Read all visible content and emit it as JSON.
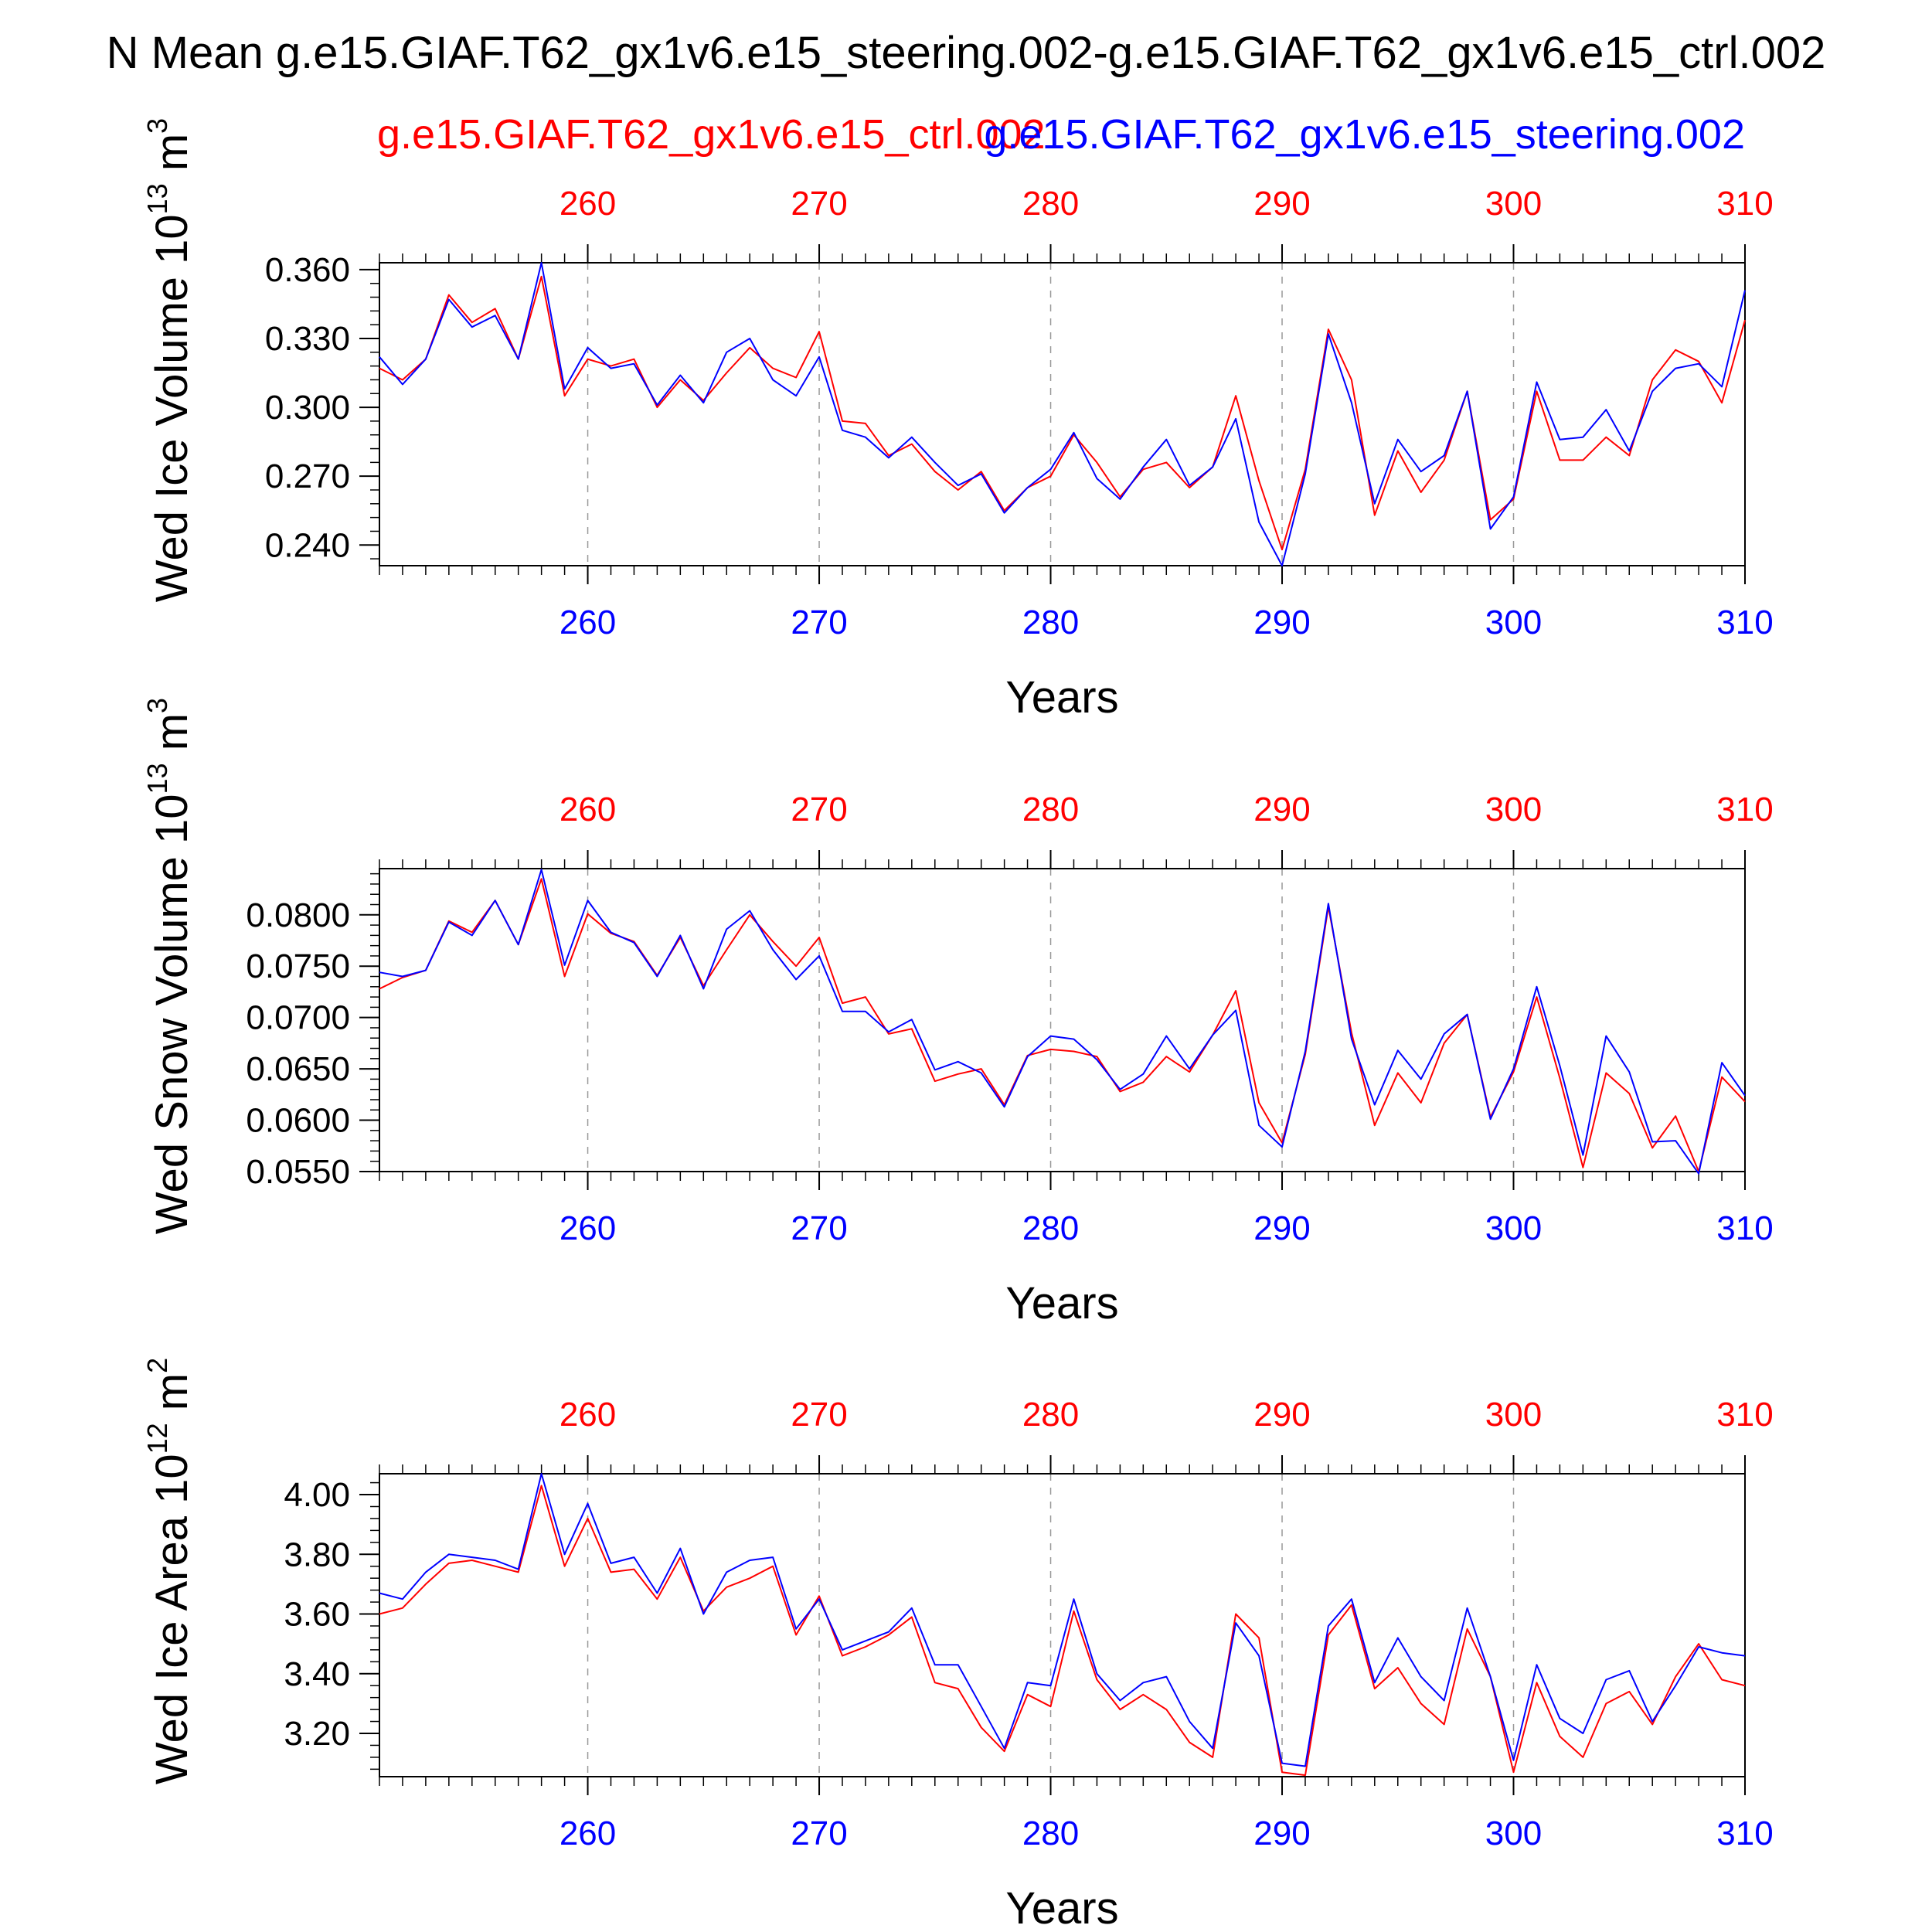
{
  "figure": {
    "title": "N Mean g.e15.GIAF.T62_gx1v6.e15_steering.002-g.e15.GIAF.T62_gx1v6.e15_ctrl.002",
    "ctrl_label": "g.e15.GIAF.T62_gx1v6.e15_ctrl.002",
    "steering_label": "g.e15.GIAF.T62_gx1v6.e15_steering.002",
    "colors": {
      "ctrl": "#ff0000",
      "steering": "#0000ff",
      "axis": "#000000",
      "grid": "#999999"
    }
  },
  "chart_data": [
    {
      "type": "line",
      "ylabel_main": "Wed Ice Volume 10",
      "ylabel_exp": "13",
      "ylabel_unit": "m",
      "ylabel_unit_exp": "3",
      "xlabel": "Years",
      "xlim": [
        251,
        310
      ],
      "ylim": [
        0.231,
        0.363
      ],
      "ytick_values": [
        0.24,
        0.27,
        0.3,
        0.33,
        0.36
      ],
      "ytick_labels": [
        "0.240",
        "0.270",
        "0.300",
        "0.330",
        "0.360"
      ],
      "xtick_values": [
        260,
        270,
        280,
        290,
        300,
        310
      ],
      "xtick_labels": [
        "260",
        "270",
        "280",
        "290",
        "300",
        "310"
      ],
      "grid": "x-dashed",
      "x": [
        251,
        252,
        253,
        254,
        255,
        256,
        257,
        258,
        259,
        260,
        261,
        262,
        263,
        264,
        265,
        266,
        267,
        268,
        269,
        270,
        271,
        272,
        273,
        274,
        275,
        276,
        277,
        278,
        279,
        280,
        281,
        282,
        283,
        284,
        285,
        286,
        287,
        288,
        289,
        290,
        291,
        292,
        293,
        294,
        295,
        296,
        297,
        298,
        299,
        300,
        301,
        302,
        303,
        304,
        305,
        306,
        307,
        308,
        309,
        310
      ],
      "series": [
        {
          "name": "g.e15.GIAF.T62_gx1v6.e15_ctrl.002",
          "color": "#ff0000",
          "values": [
            0.317,
            0.312,
            0.321,
            0.349,
            0.337,
            0.343,
            0.321,
            0.357,
            0.305,
            0.321,
            0.318,
            0.321,
            0.3,
            0.312,
            0.303,
            0.315,
            0.326,
            0.317,
            0.313,
            0.333,
            0.294,
            0.293,
            0.279,
            0.284,
            0.272,
            0.264,
            0.272,
            0.255,
            0.265,
            0.27,
            0.288,
            0.276,
            0.261,
            0.273,
            0.276,
            0.265,
            0.274,
            0.305,
            0.268,
            0.238,
            0.273,
            0.334,
            0.312,
            0.253,
            0.281,
            0.263,
            0.277,
            0.307,
            0.251,
            0.26,
            0.307,
            0.277,
            0.277,
            0.287,
            0.279,
            0.312,
            0.325,
            0.32,
            0.302,
            0.338
          ]
        },
        {
          "name": "g.e15.GIAF.T62_gx1v6.e15_steering.002",
          "color": "#0000ff",
          "values": [
            0.322,
            0.31,
            0.321,
            0.347,
            0.335,
            0.34,
            0.321,
            0.363,
            0.308,
            0.326,
            0.317,
            0.319,
            0.301,
            0.314,
            0.302,
            0.324,
            0.33,
            0.312,
            0.305,
            0.322,
            0.29,
            0.287,
            0.278,
            0.287,
            0.276,
            0.266,
            0.271,
            0.254,
            0.265,
            0.273,
            0.289,
            0.269,
            0.26,
            0.274,
            0.286,
            0.266,
            0.274,
            0.295,
            0.25,
            0.231,
            0.271,
            0.332,
            0.302,
            0.258,
            0.286,
            0.272,
            0.279,
            0.307,
            0.247,
            0.261,
            0.311,
            0.286,
            0.287,
            0.299,
            0.281,
            0.307,
            0.317,
            0.319,
            0.309,
            0.351
          ]
        }
      ]
    },
    {
      "type": "line",
      "ylabel_main": "Wed Snow Volume 10",
      "ylabel_exp": "13",
      "ylabel_unit": "m",
      "ylabel_unit_exp": "3",
      "xlabel": "Years",
      "xlim": [
        251,
        310
      ],
      "ylim": [
        0.055,
        0.0845
      ],
      "ytick_values": [
        0.055,
        0.06,
        0.065,
        0.07,
        0.075,
        0.08
      ],
      "ytick_labels": [
        "0.0550",
        "0.0600",
        "0.0650",
        "0.0700",
        "0.0750",
        "0.0800"
      ],
      "xtick_values": [
        260,
        270,
        280,
        290,
        300,
        310
      ],
      "xtick_labels": [
        "260",
        "270",
        "280",
        "290",
        "300",
        "310"
      ],
      "grid": "x-dashed",
      "x": [
        251,
        252,
        253,
        254,
        255,
        256,
        257,
        258,
        259,
        260,
        261,
        262,
        263,
        264,
        265,
        266,
        267,
        268,
        269,
        270,
        271,
        272,
        273,
        274,
        275,
        276,
        277,
        278,
        279,
        280,
        281,
        282,
        283,
        284,
        285,
        286,
        287,
        288,
        289,
        290,
        291,
        292,
        293,
        294,
        295,
        296,
        297,
        298,
        299,
        300,
        301,
        302,
        303,
        304,
        305,
        306,
        307,
        308,
        309,
        310
      ],
      "series": [
        {
          "name": "g.e15.GIAF.T62_gx1v6.e15_ctrl.002",
          "color": "#ff0000",
          "values": [
            0.0728,
            0.0739,
            0.0746,
            0.0794,
            0.0783,
            0.0814,
            0.0771,
            0.0835,
            0.074,
            0.0801,
            0.0782,
            0.0774,
            0.0741,
            0.0778,
            0.0731,
            0.0766,
            0.08,
            0.0774,
            0.075,
            0.0778,
            0.0714,
            0.072,
            0.0684,
            0.0689,
            0.0638,
            0.0645,
            0.065,
            0.0615,
            0.0663,
            0.0669,
            0.0667,
            0.0662,
            0.0628,
            0.0637,
            0.0662,
            0.0647,
            0.0683,
            0.0726,
            0.0617,
            0.0578,
            0.0664,
            0.0808,
            0.0685,
            0.0595,
            0.0646,
            0.0617,
            0.0675,
            0.0703,
            0.0603,
            0.0647,
            0.072,
            0.0641,
            0.0554,
            0.0646,
            0.0626,
            0.0573,
            0.0604,
            0.055,
            0.0642,
            0.0618
          ]
        },
        {
          "name": "g.e15.GIAF.T62_gx1v6.e15_steering.002",
          "color": "#0000ff",
          "values": [
            0.0744,
            0.074,
            0.0746,
            0.0793,
            0.078,
            0.0814,
            0.0771,
            0.0844,
            0.0751,
            0.0814,
            0.0783,
            0.0773,
            0.074,
            0.078,
            0.0728,
            0.0786,
            0.0804,
            0.0766,
            0.0737,
            0.076,
            0.0706,
            0.0706,
            0.0686,
            0.0698,
            0.0649,
            0.0657,
            0.0646,
            0.0613,
            0.0662,
            0.0682,
            0.0679,
            0.0659,
            0.063,
            0.0645,
            0.0682,
            0.065,
            0.0683,
            0.0707,
            0.0595,
            0.0574,
            0.0667,
            0.0811,
            0.0679,
            0.0615,
            0.0668,
            0.064,
            0.0684,
            0.0703,
            0.0601,
            0.065,
            0.073,
            0.0653,
            0.0566,
            0.0682,
            0.0647,
            0.0579,
            0.058,
            0.0548,
            0.0656,
            0.0624
          ]
        }
      ]
    },
    {
      "type": "line",
      "ylabel_main": "Wed Ice Area 10",
      "ylabel_exp": "12",
      "ylabel_unit": "m",
      "ylabel_unit_exp": "2",
      "xlabel": "Years",
      "xlim": [
        251,
        310
      ],
      "ylim": [
        3.055,
        4.07
      ],
      "ytick_values": [
        3.2,
        3.4,
        3.6,
        3.8,
        4.0
      ],
      "ytick_labels": [
        "3.20",
        "3.40",
        "3.60",
        "3.80",
        "4.00"
      ],
      "xtick_values": [
        260,
        270,
        280,
        290,
        300,
        310
      ],
      "xtick_labels": [
        "260",
        "270",
        "280",
        "290",
        "300",
        "310"
      ],
      "grid": "x-dashed",
      "x": [
        251,
        252,
        253,
        254,
        255,
        256,
        257,
        258,
        259,
        260,
        261,
        262,
        263,
        264,
        265,
        266,
        267,
        268,
        269,
        270,
        271,
        272,
        273,
        274,
        275,
        276,
        277,
        278,
        279,
        280,
        281,
        282,
        283,
        284,
        285,
        286,
        287,
        288,
        289,
        290,
        291,
        292,
        293,
        294,
        295,
        296,
        297,
        298,
        299,
        300,
        301,
        302,
        303,
        304,
        305,
        306,
        307,
        308,
        309,
        310
      ],
      "series": [
        {
          "name": "g.e15.GIAF.T62_gx1v6.e15_ctrl.002",
          "color": "#ff0000",
          "values": [
            3.6,
            3.62,
            3.7,
            3.77,
            3.78,
            3.76,
            3.74,
            4.03,
            3.76,
            3.92,
            3.74,
            3.75,
            3.65,
            3.79,
            3.61,
            3.69,
            3.72,
            3.76,
            3.53,
            3.66,
            3.46,
            3.49,
            3.53,
            3.59,
            3.37,
            3.35,
            3.22,
            3.14,
            3.33,
            3.29,
            3.61,
            3.38,
            3.28,
            3.33,
            3.28,
            3.17,
            3.12,
            3.6,
            3.52,
            3.07,
            3.06,
            3.53,
            3.63,
            3.35,
            3.42,
            3.3,
            3.23,
            3.55,
            3.39,
            3.07,
            3.37,
            3.19,
            3.12,
            3.3,
            3.34,
            3.23,
            3.39,
            3.5,
            3.38,
            3.36
          ]
        },
        {
          "name": "g.e15.GIAF.T62_gx1v6.e15_steering.002",
          "color": "#0000ff",
          "values": [
            3.67,
            3.65,
            3.74,
            3.8,
            3.79,
            3.78,
            3.75,
            4.07,
            3.8,
            3.97,
            3.77,
            3.79,
            3.67,
            3.82,
            3.6,
            3.74,
            3.78,
            3.79,
            3.55,
            3.65,
            3.48,
            3.51,
            3.54,
            3.62,
            3.43,
            3.43,
            3.29,
            3.15,
            3.37,
            3.36,
            3.65,
            3.4,
            3.31,
            3.37,
            3.39,
            3.24,
            3.15,
            3.57,
            3.46,
            3.1,
            3.09,
            3.56,
            3.65,
            3.37,
            3.52,
            3.39,
            3.31,
            3.62,
            3.39,
            3.11,
            3.43,
            3.25,
            3.2,
            3.38,
            3.41,
            3.24,
            3.36,
            3.49,
            3.47,
            3.46
          ]
        }
      ]
    }
  ]
}
